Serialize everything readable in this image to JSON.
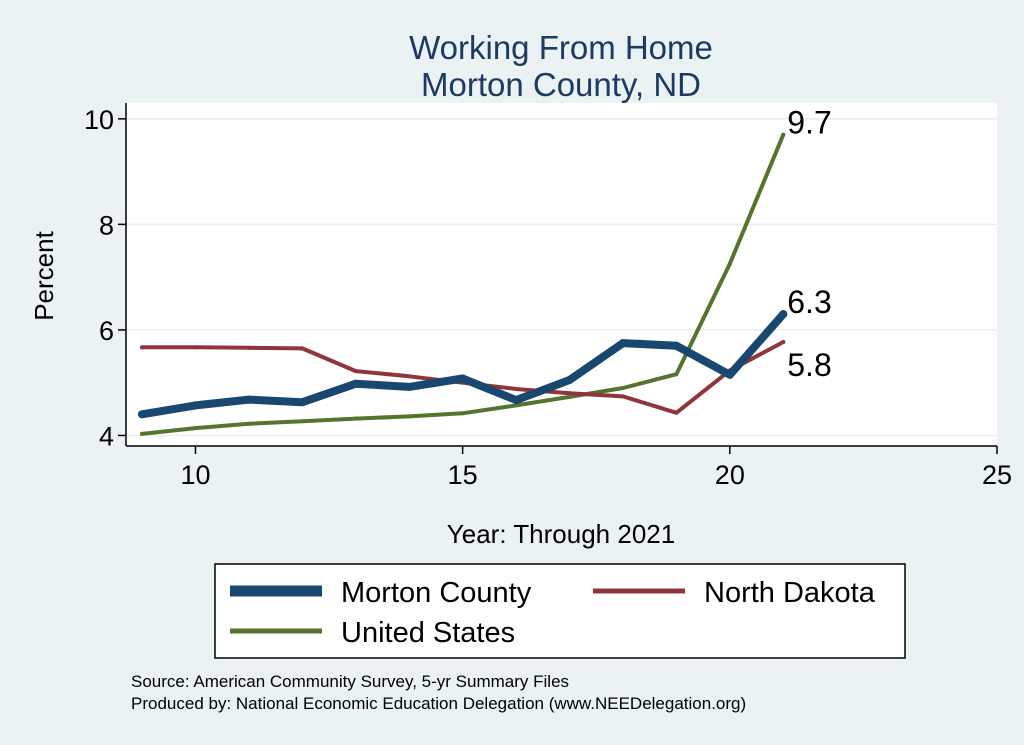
{
  "chart_data": {
    "type": "line",
    "title": "Working From Home",
    "subtitle": "Morton County, ND",
    "xlabel": "Year: Through 2021",
    "ylabel": "Percent",
    "xlim": [
      8.7,
      25
    ],
    "ylim": [
      3.8,
      10.3
    ],
    "xticks": [
      10,
      15,
      20,
      25
    ],
    "yticks": [
      4,
      6,
      8,
      10
    ],
    "grid": true,
    "legend_position": "bottom",
    "series": [
      {
        "name": "Morton County",
        "color": "#1a476f",
        "x": [
          9,
          10,
          11,
          12,
          13,
          14,
          15,
          16,
          17,
          18,
          19,
          20,
          21
        ],
        "y": [
          4.4,
          4.57,
          4.68,
          4.63,
          4.98,
          4.92,
          5.08,
          4.67,
          5.05,
          5.75,
          5.7,
          5.15,
          6.3
        ],
        "end_label": "6.3"
      },
      {
        "name": "North Dakota",
        "color": "#90353b",
        "x": [
          9,
          10,
          11,
          12,
          13,
          14,
          15,
          16,
          17,
          18,
          19,
          20,
          21
        ],
        "y": [
          5.67,
          5.67,
          5.66,
          5.65,
          5.22,
          5.12,
          5.0,
          4.88,
          4.8,
          4.74,
          4.43,
          5.23,
          5.77
        ],
        "end_label": "5.8"
      },
      {
        "name": "United States",
        "color": "#55752f",
        "x": [
          9,
          10,
          11,
          12,
          13,
          14,
          15,
          16,
          17,
          18,
          19,
          20,
          21
        ],
        "y": [
          4.03,
          4.14,
          4.22,
          4.27,
          4.32,
          4.36,
          4.42,
          4.57,
          4.73,
          4.9,
          5.16,
          7.25,
          9.7
        ],
        "end_label": "9.7"
      }
    ],
    "notes": [
      "Source: American Community Survey, 5-yr Summary Files",
      "Produced by: National Economic Education Delegation (www.NEEDelegation.org)"
    ]
  }
}
